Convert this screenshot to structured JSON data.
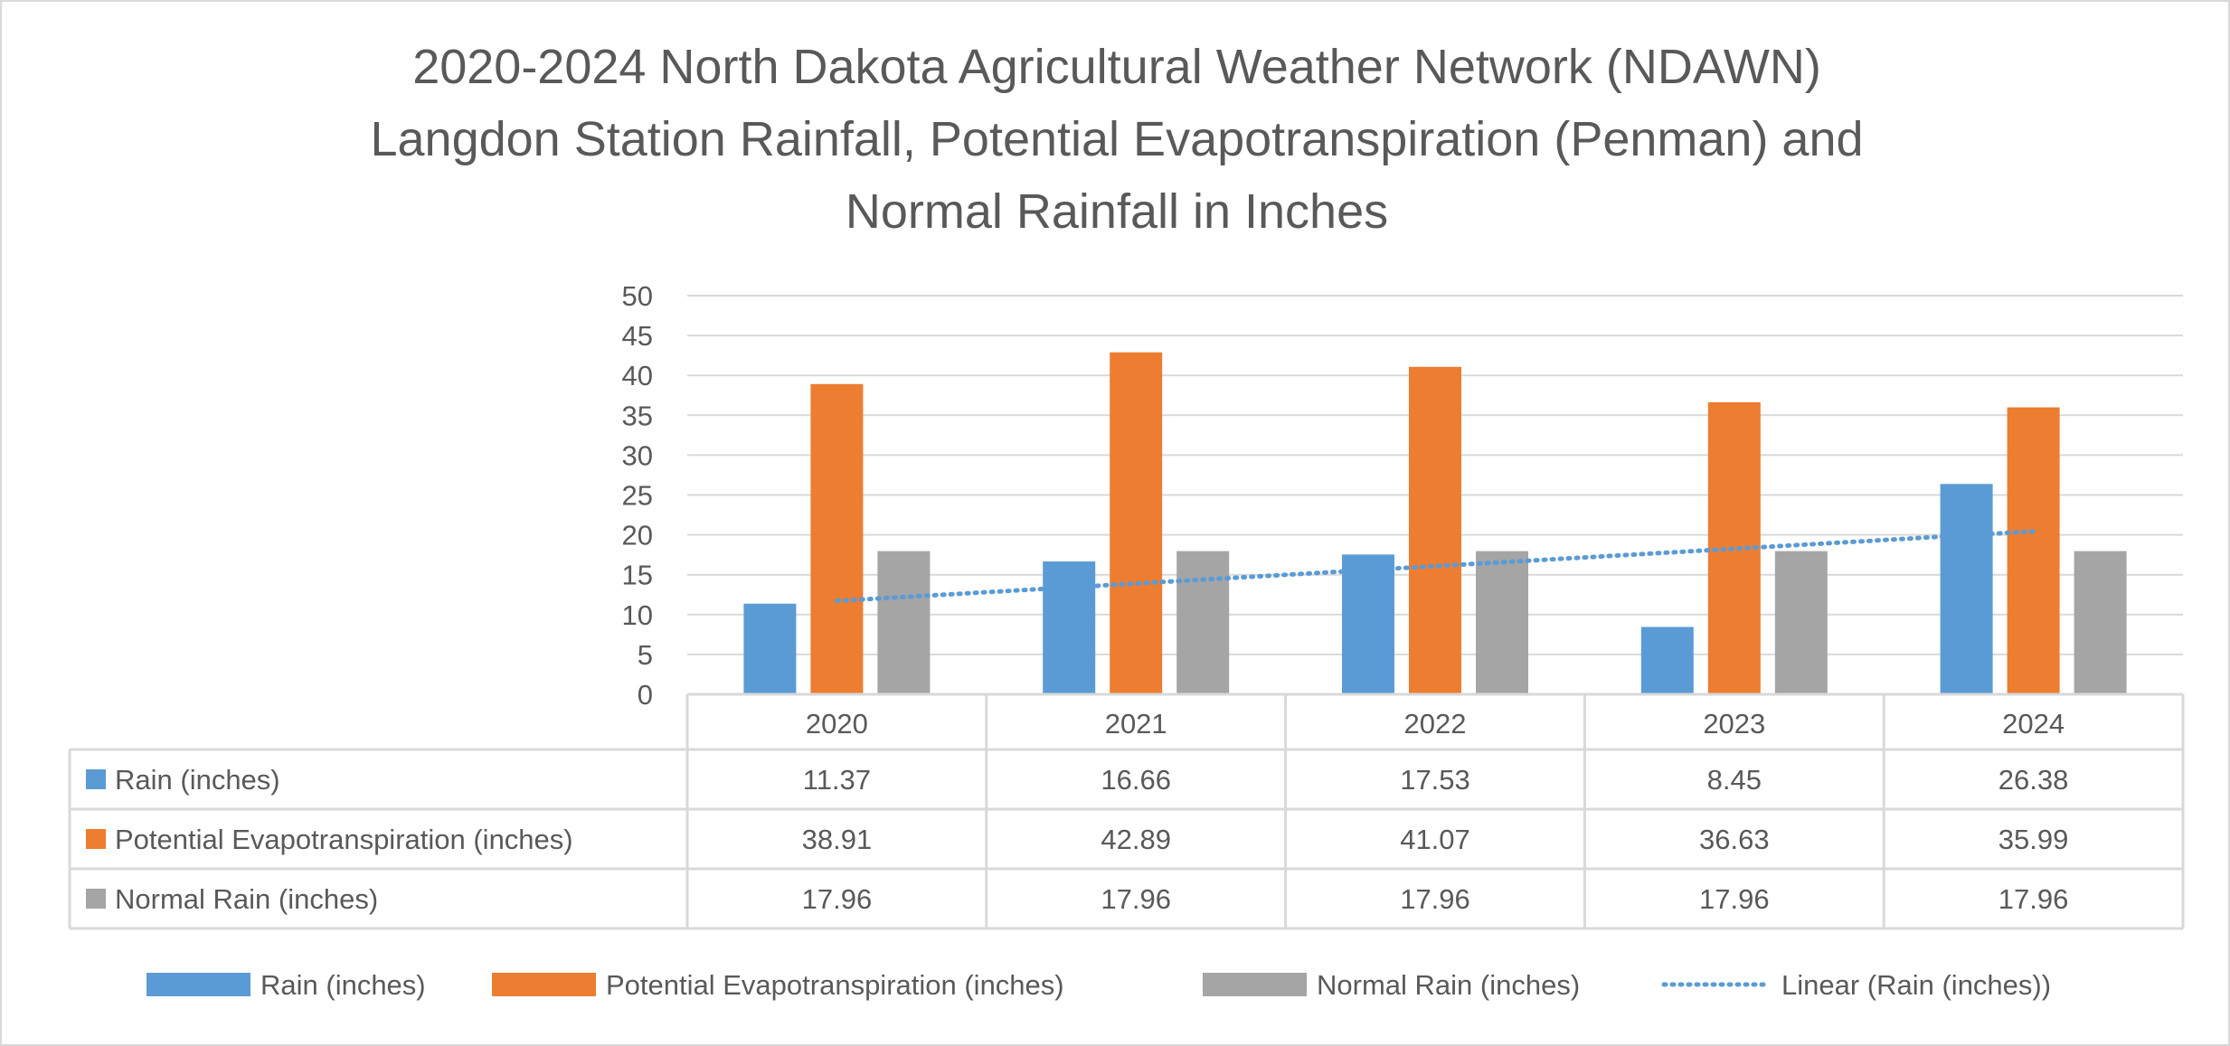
{
  "chart_data": {
    "type": "bar",
    "title_lines": [
      "2020-2024 North Dakota Agricultural Weather Network (NDAWN)",
      "Langdon Station Rainfall, Potential Evapotranspiration (Penman) and",
      "Normal Rainfall in Inches"
    ],
    "categories": [
      "2020",
      "2021",
      "2022",
      "2023",
      "2024"
    ],
    "series": [
      {
        "name": "Rain (inches)",
        "color": "#5b9bd5",
        "values": [
          11.37,
          16.66,
          17.53,
          8.45,
          26.38
        ],
        "labels": [
          "11.37",
          "16.66",
          "17.53",
          "8.45",
          "26.38"
        ]
      },
      {
        "name": "Potential Evapotranspiration (inches)",
        "color": "#ed7d31",
        "values": [
          38.91,
          42.89,
          41.07,
          36.63,
          35.99
        ],
        "labels": [
          "38.91",
          "42.89",
          "41.07",
          "36.63",
          "35.99"
        ]
      },
      {
        "name": "Normal Rain (inches)",
        "color": "#a5a5a5",
        "values": [
          17.96,
          17.96,
          17.96,
          17.96,
          17.96
        ],
        "labels": [
          "17.96",
          "17.96",
          "17.96",
          "17.96",
          "17.96"
        ]
      }
    ],
    "trendline": {
      "name": "Linear (Rain (inches))",
      "of_series": "Rain (inches)",
      "type": "linear",
      "style": "dotted",
      "color": "#5b9bd5"
    },
    "ylim": [
      0,
      50
    ],
    "yticks": [
      "0",
      "5",
      "10",
      "15",
      "20",
      "25",
      "30",
      "35",
      "40",
      "45",
      "50"
    ],
    "grid": true,
    "data_table": true,
    "legend": "bottom",
    "xlabel": "",
    "ylabel": ""
  }
}
